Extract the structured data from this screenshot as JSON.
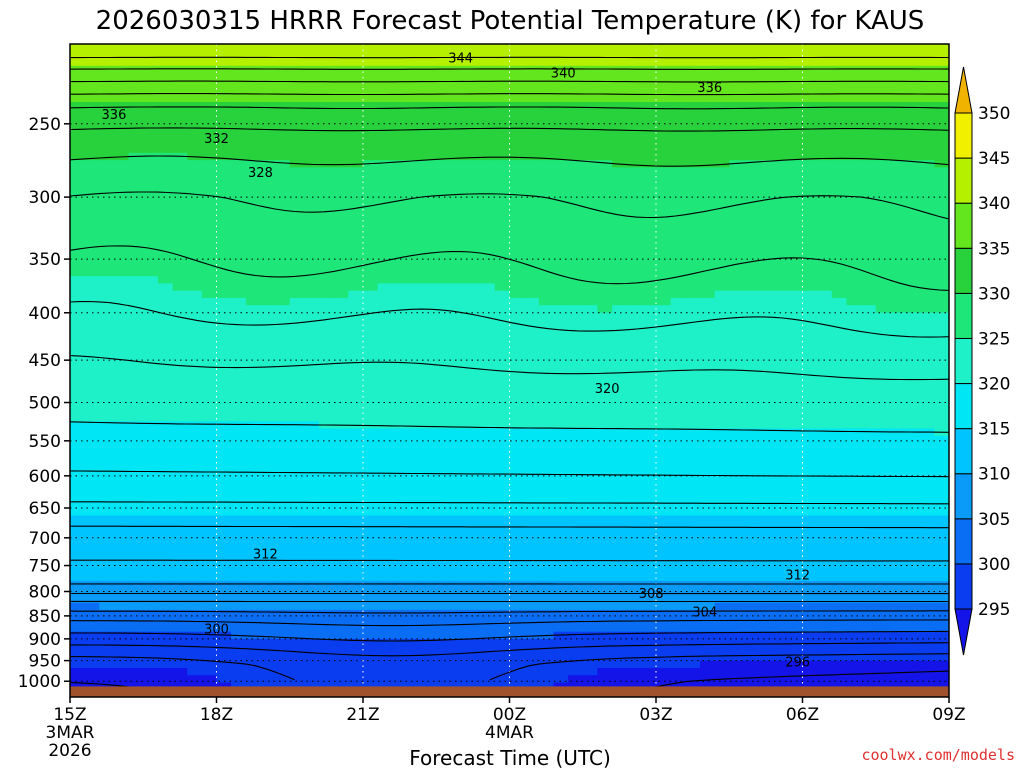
{
  "chart_data": {
    "type": "contour",
    "title": "2026030315 HRRR Forecast Potential Temperature (K) for KAUS",
    "xlabel": "Forecast Time (UTC)",
    "ylabel": "",
    "y_scale": "log-pressure (inverted)",
    "grid": "dotted",
    "x_ticks": [
      {
        "hour": 0,
        "label": "15Z",
        "sub": [
          "3MAR",
          "2026"
        ]
      },
      {
        "hour": 3,
        "label": "18Z",
        "sub": []
      },
      {
        "hour": 6,
        "label": "21Z",
        "sub": []
      },
      {
        "hour": 9,
        "label": "00Z",
        "sub": [
          "4MAR"
        ]
      },
      {
        "hour": 12,
        "label": "03Z",
        "sub": []
      },
      {
        "hour": 15,
        "label": "06Z",
        "sub": []
      },
      {
        "hour": 18,
        "label": "09Z",
        "sub": []
      }
    ],
    "y_ticks": [
      1000,
      950,
      900,
      850,
      800,
      750,
      700,
      650,
      600,
      550,
      500,
      450,
      400,
      350,
      300,
      250
    ],
    "y_range_hPa": [
      1040,
      205
    ],
    "colorbar": {
      "levels": [
        295,
        300,
        305,
        310,
        315,
        320,
        325,
        330,
        335,
        340,
        345,
        350
      ],
      "colors": [
        "#1414e8",
        "#0a3cf0",
        "#0a6ef5",
        "#0a9af8",
        "#00c4ff",
        "#00e6f5",
        "#1ef0c8",
        "#1ee678",
        "#28d23c",
        "#64e61e",
        "#b4f000",
        "#f0f000",
        "#ffe000",
        "#f0b400"
      ]
    },
    "contour_labels": [
      {
        "value": "344",
        "hour": 8.0,
        "p": 212
      },
      {
        "value": "340",
        "hour": 10.1,
        "p": 220
      },
      {
        "value": "336",
        "hour": 13.1,
        "p": 228
      },
      {
        "value": "336",
        "hour": 0.9,
        "p": 244
      },
      {
        "value": "332",
        "hour": 3.0,
        "p": 259
      },
      {
        "value": "328",
        "hour": 3.9,
        "p": 282
      },
      {
        "value": "320",
        "hour": 11.0,
        "p": 482
      },
      {
        "value": "312",
        "hour": 4.0,
        "p": 728
      },
      {
        "value": "312",
        "hour": 14.9,
        "p": 767
      },
      {
        "value": "308",
        "hour": 11.9,
        "p": 803
      },
      {
        "value": "304",
        "hour": 13.0,
        "p": 841
      },
      {
        "value": "300",
        "hour": 3.0,
        "p": 877
      },
      {
        "value": "296",
        "hour": 14.9,
        "p": 952
      }
    ],
    "terrain_color": "#a0522d"
  },
  "credit": "coolwx.com/models"
}
